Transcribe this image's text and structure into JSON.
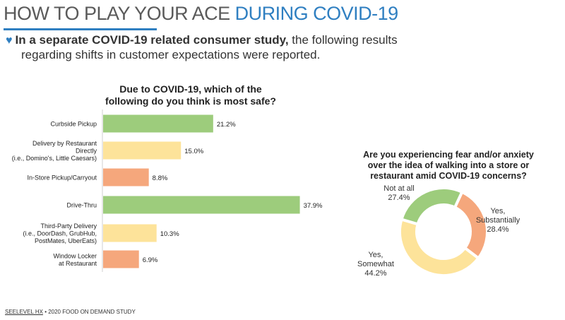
{
  "header": {
    "title_main": "HOW TO PLAY YOUR ACE",
    "title_accent": "DURING COVID-19"
  },
  "intro": {
    "bold": "In a separate COVID-19 related consumer study,",
    "rest": "the following results",
    "line2": "regarding shifts in customer expectations were reported."
  },
  "footer": {
    "brand": "SEELEVEL HX",
    "text": "• 2020 FOOD ON DEMAND STUDY"
  },
  "colors": {
    "green": "#9dcc7c",
    "yellow": "#fde39a",
    "orange": "#f5a77c",
    "accent": "#2f7fc1"
  },
  "chart_data": [
    {
      "type": "bar",
      "orientation": "horizontal",
      "title": "Due to COVID-19, which of the following do you think is most safe?",
      "title_lines": [
        "Due to COVID-19, which of the",
        "following do you think is most safe?"
      ],
      "categories": [
        [
          "Curbside Pickup"
        ],
        [
          "Delivery by Restaurant",
          "Directly",
          "(i.e., Domino's, Little Caesars)"
        ],
        [
          "In-Store Pickup/Carryout"
        ],
        [
          "Drive-Thru"
        ],
        [
          "Third-Party Delivery",
          "(i.e., DoorDash, GrubHub,",
          "PostMates, UberEats)"
        ],
        [
          "Window Locker",
          "at Restaurant"
        ]
      ],
      "values": [
        21.2,
        15.0,
        8.8,
        37.9,
        10.3,
        6.9
      ],
      "value_labels": [
        "21.2%",
        "15.0%",
        "8.8%",
        "37.9%",
        "10.3%",
        "6.9%"
      ],
      "bar_colors": [
        "#9dcc7c",
        "#fde39a",
        "#f5a77c",
        "#9dcc7c",
        "#fde39a",
        "#f5a77c"
      ],
      "xlim": [
        0,
        40
      ]
    },
    {
      "type": "pie",
      "donut": true,
      "title": "Are you experiencing fear and/or anxiety over the idea of walking into a store or restaurant amid COVID-19 concerns?",
      "title_lines": [
        "Are you experiencing fear and/or anxiety",
        "over the idea of walking into a store or",
        "restaurant amid COVID-19 concerns?"
      ],
      "slices": [
        {
          "label": [
            "Yes,",
            "Substantially"
          ],
          "value": 28.4,
          "value_label": "28.4%",
          "color": "#f5a77c"
        },
        {
          "label": [
            "Yes,",
            "Somewhat"
          ],
          "value": 44.2,
          "value_label": "44.2%",
          "color": "#fde39a"
        },
        {
          "label": [
            "Not at all"
          ],
          "value": 27.4,
          "value_label": "27.4%",
          "color": "#9dcc7c"
        }
      ]
    }
  ]
}
